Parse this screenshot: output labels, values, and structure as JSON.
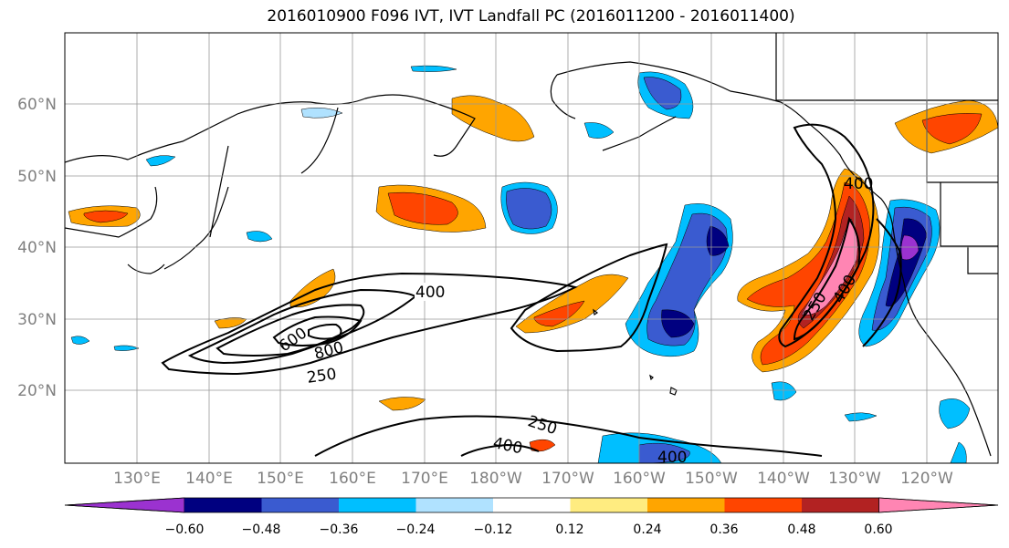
{
  "title": "2016010900 F096 IVT, IVT Landfall PC (2016011200 - 2016011400)",
  "map": {
    "lat_labels": [
      "60°N",
      "50°N",
      "40°N",
      "30°N",
      "20°N"
    ],
    "lon_labels": [
      "130°E",
      "140°E",
      "150°E",
      "160°E",
      "170°E",
      "180°W",
      "170°W",
      "160°W",
      "150°W",
      "140°W",
      "130°W",
      "120°W"
    ],
    "contour_labels": [
      "400",
      "600",
      "800",
      "250",
      "250",
      "400",
      "400",
      "400",
      "250",
      "400"
    ]
  },
  "colorbar": {
    "colors": [
      "#9b32d0",
      "#000080",
      "#3a5bd0",
      "#00bfff",
      "#b0e2ff",
      "#ffffff",
      "#ffec80",
      "#ffa500",
      "#ff4500",
      "#b22222",
      "#ff85b3"
    ],
    "ticks": [
      "−0.60",
      "−0.48",
      "−0.36",
      "−0.24",
      "−0.12",
      "0.12",
      "0.24",
      "0.36",
      "0.48",
      "0.60"
    ]
  }
}
